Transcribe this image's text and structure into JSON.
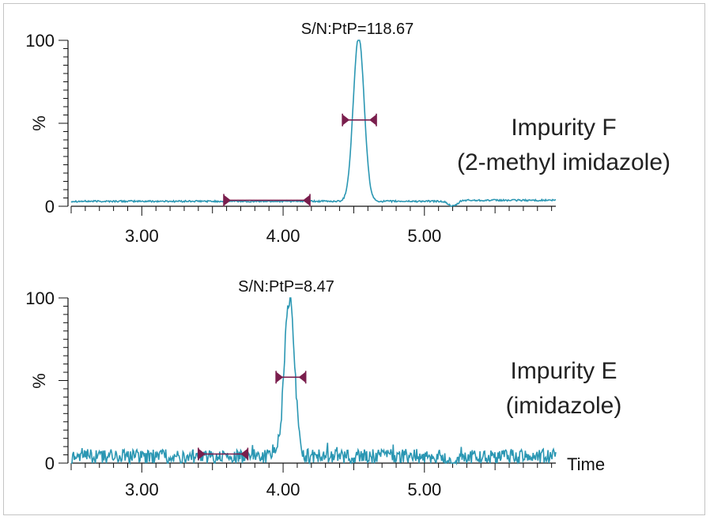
{
  "colors": {
    "trace": "#2b97b3",
    "marker": "#7a1e4d",
    "axis": "#111111",
    "frame": "#c4c4c4"
  },
  "chart_data": [
    {
      "type": "line",
      "panel": "top",
      "title": "Impurity F",
      "subtitle": "(2-methyl imidazole)",
      "annotation": "S/N:PtP=118.67",
      "ylabel": "%",
      "xlabel": "",
      "xlim": [
        2.5,
        5.93
      ],
      "ylim": [
        0,
        100
      ],
      "xticks": [
        "3.00",
        "4.00",
        "5.00"
      ],
      "xtick_values": [
        3.0,
        4.0,
        5.0
      ],
      "yticks": [
        "0",
        "%",
        "100"
      ],
      "ytick_values": [
        0,
        50,
        100
      ],
      "baseline": 3,
      "peak": {
        "center": 4.535,
        "height": 100,
        "width_sigma": 0.038
      },
      "dip": {
        "center": 5.2,
        "depth": -3
      },
      "noise_amplitude": 0.5,
      "noise_region": {
        "x1": 3.58,
        "x2": 4.19,
        "y": 3.6
      },
      "peak_width_marker": {
        "x1": 4.42,
        "x2": 4.66,
        "y": 52
      }
    },
    {
      "type": "line",
      "panel": "bottom",
      "title": "Impurity E",
      "subtitle": "(imidazole)",
      "annotation": "S/N:PtP=8.47",
      "ylabel": "%",
      "xlabel": "Time",
      "xlim": [
        2.5,
        5.93
      ],
      "ylim": [
        0,
        100
      ],
      "xticks": [
        "3.00",
        "4.00",
        "5.00"
      ],
      "xtick_values": [
        3.0,
        4.0,
        5.0
      ],
      "yticks": [
        "0",
        "%",
        "100"
      ],
      "ytick_values": [
        0,
        50,
        100
      ],
      "baseline": 4,
      "peak": {
        "center": 4.045,
        "height": 96,
        "width_sigma": 0.036
      },
      "dip": {
        "center": 5.2,
        "depth": -4
      },
      "noise_amplitude": 4.5,
      "noise_region": {
        "x1": 3.4,
        "x2": 3.75,
        "y": 5.5
      },
      "peak_width_marker": {
        "x1": 3.95,
        "x2": 4.16,
        "y": 52
      }
    }
  ]
}
